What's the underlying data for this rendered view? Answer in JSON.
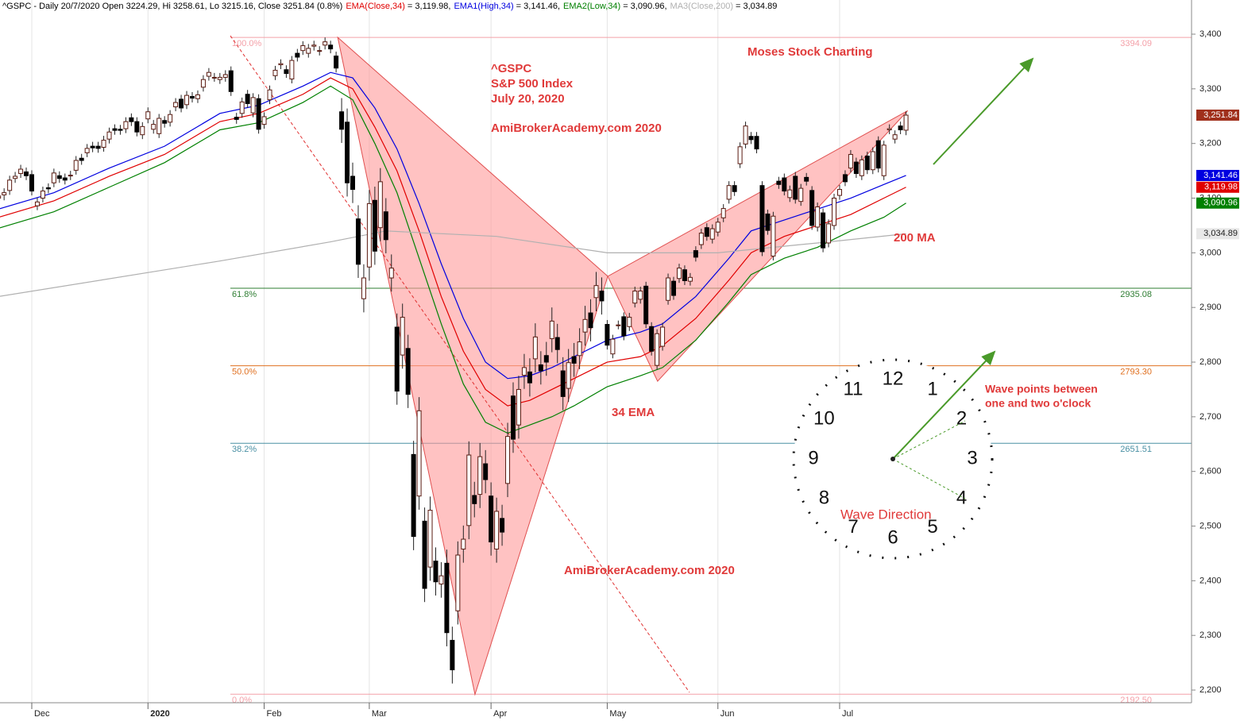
{
  "chart_data": {
    "type": "candlestick",
    "title": "^GSPC - Daily 20/7/2020 Open 3224.29, Hi 3258.61, Lo 3215.16, Close 3251.84 (0.8%)",
    "ohlc": {
      "open": [
        3100,
        3106,
        3114,
        3136,
        3145,
        3148,
        3143,
        3086,
        3100,
        3119,
        3128,
        3141,
        3137,
        3141,
        3151,
        3173,
        3183,
        3195,
        3195,
        3193,
        3208,
        3227,
        3226,
        3227,
        3247,
        3240,
        3216,
        3245,
        3226,
        3218,
        3242,
        3239,
        3267,
        3281,
        3271,
        3286,
        3282,
        3303,
        3323,
        3321,
        3317,
        3321,
        3333,
        3248,
        3255,
        3290,
        3256,
        3282,
        3235,
        3280,
        3324,
        3344,
        3335,
        3318,
        3365,
        3370,
        3365,
        3378,
        3369,
        3380,
        3380,
        3360,
        3258,
        3239,
        3140,
        3062,
        2916,
        2974,
        3096,
        3046,
        3075,
        2954,
        2864,
        2813,
        2825,
        2631,
        2555,
        2509,
        2425,
        2436,
        2394,
        2432,
        2291,
        2345,
        2458,
        2501,
        2556,
        2558,
        2614,
        2555,
        2458,
        2514,
        2578,
        2738,
        2685,
        2776,
        2782,
        2806,
        2795,
        2812,
        2843,
        2845,
        2784,
        2752,
        2810,
        2812,
        2855,
        2890,
        2918,
        2930,
        2869,
        2815,
        2868,
        2883,
        2865,
        2908,
        2915,
        2939,
        2865,
        2794,
        2829,
        2913,
        2948,
        2953,
        2969,
        2948,
        3004,
        3015,
        3046,
        3025,
        3038,
        3064,
        3098,
        3123,
        3163,
        3199,
        3213,
        3213,
        3123,
        3071,
        2994,
        3131,
        3137,
        3101,
        3140,
        3094,
        3138,
        3114,
        3047,
        3073,
        3018,
        3050,
        3105,
        3143,
        3155,
        3166,
        3141,
        3177,
        3152,
        3205,
        3141,
        3225,
        3208,
        3232,
        3224.29
      ],
      "high": [
        3112,
        3118,
        3141,
        3148,
        3161,
        3156,
        3151,
        3101,
        3121,
        3127,
        3154,
        3149,
        3145,
        3150,
        3177,
        3181,
        3199,
        3203,
        3203,
        3214,
        3229,
        3235,
        3234,
        3248,
        3255,
        3248,
        3239,
        3266,
        3243,
        3254,
        3250,
        3261,
        3283,
        3289,
        3296,
        3294,
        3297,
        3325,
        3338,
        3329,
        3329,
        3334,
        3341,
        3256,
        3284,
        3298,
        3292,
        3290,
        3257,
        3306,
        3342,
        3354,
        3343,
        3360,
        3373,
        3387,
        3382,
        3388,
        3378,
        3394,
        3388,
        3368,
        3283,
        3264,
        3165,
        3087,
        2979,
        3115,
        3121,
        3155,
        3100,
        2997,
        2889,
        2907,
        2850,
        2656,
        2736,
        2534,
        2554,
        2461,
        2434,
        2457,
        2316,
        2472,
        2501,
        2655,
        2581,
        2652,
        2639,
        2580,
        2552,
        2539,
        2689,
        2763,
        2775,
        2815,
        2807,
        2871,
        2820,
        2837,
        2900,
        2870,
        2809,
        2824,
        2835,
        2862,
        2903,
        2915,
        2965,
        2955,
        2877,
        2850,
        2876,
        2891,
        2890,
        2938,
        2938,
        2947,
        2873,
        2860,
        2872,
        2962,
        2956,
        2980,
        2977,
        2963,
        3012,
        3044,
        3054,
        3052,
        3064,
        3089,
        3131,
        3131,
        3202,
        3240,
        3221,
        3221,
        3131,
        3079,
        3075,
        3139,
        3145,
        3123,
        3148,
        3126,
        3146,
        3122,
        3092,
        3081,
        3061,
        3108,
        3124,
        3151,
        3188,
        3174,
        3178,
        3185,
        3193,
        3213,
        3205,
        3235,
        3224,
        3240,
        3258.61
      ],
      "low": [
        3092,
        3096,
        3106,
        3128,
        3137,
        3133,
        3105,
        3078,
        3092,
        3109,
        3120,
        3128,
        3125,
        3133,
        3143,
        3161,
        3175,
        3184,
        3183,
        3185,
        3200,
        3216,
        3216,
        3219,
        3232,
        3213,
        3208,
        3237,
        3218,
        3210,
        3229,
        3231,
        3259,
        3257,
        3263,
        3275,
        3274,
        3295,
        3315,
        3313,
        3309,
        3313,
        3287,
        3236,
        3247,
        3265,
        3248,
        3218,
        3227,
        3272,
        3316,
        3336,
        3320,
        3310,
        3350,
        3362,
        3357,
        3370,
        3361,
        3372,
        3365,
        3330,
        3201,
        3103,
        3091,
        2954,
        2891,
        2949,
        2978,
        3021,
        2999,
        2929,
        2722,
        2788,
        2716,
        2456,
        2530,
        2361,
        2400,
        2373,
        2369,
        2280,
        2212,
        2320,
        2433,
        2476,
        2516,
        2533,
        2560,
        2446,
        2433,
        2464,
        2553,
        2634,
        2660,
        2751,
        2737,
        2781,
        2759,
        2775,
        2818,
        2798,
        2712,
        2727,
        2773,
        2787,
        2830,
        2838,
        2893,
        2887,
        2823,
        2807,
        2860,
        2840,
        2857,
        2900,
        2907,
        2862,
        2812,
        2786,
        2821,
        2905,
        2914,
        2945,
        2941,
        2940,
        2984,
        3007,
        3022,
        3017,
        3030,
        3056,
        3090,
        3104,
        3155,
        3191,
        3199,
        3182,
        2994,
        3033,
        2986,
        3117,
        3105,
        3093,
        3090,
        3086,
        3123,
        3042,
        3039,
        3001,
        3010,
        3042,
        3097,
        3122,
        3147,
        3137,
        3133,
        3144,
        3144,
        3147,
        3133,
        3217,
        3200,
        3217,
        3215.16
      ],
      "close": [
        3104,
        3110,
        3133,
        3140,
        3153,
        3141,
        3113,
        3093,
        3113,
        3117,
        3146,
        3136,
        3133,
        3142,
        3169,
        3169,
        3191,
        3192,
        3191,
        3206,
        3221,
        3224,
        3224,
        3240,
        3240,
        3221,
        3231,
        3258,
        3235,
        3246,
        3237,
        3253,
        3275,
        3265,
        3288,
        3283,
        3289,
        3317,
        3330,
        3321,
        3321,
        3326,
        3295,
        3244,
        3276,
        3273,
        3284,
        3226,
        3249,
        3298,
        3334,
        3346,
        3328,
        3352,
        3358,
        3379,
        3374,
        3380,
        3370,
        3386,
        3373,
        3338,
        3226,
        3128,
        3116,
        2979,
        2954,
        3090,
        3003,
        3130,
        3024,
        2972,
        2747,
        2882,
        2741,
        2481,
        2711,
        2386,
        2529,
        2398,
        2409,
        2305,
        2237,
        2447,
        2476,
        2630,
        2541,
        2627,
        2585,
        2471,
        2527,
        2489,
        2664,
        2659,
        2750,
        2790,
        2762,
        2846,
        2784,
        2800,
        2875,
        2823,
        2737,
        2799,
        2798,
        2837,
        2878,
        2863,
        2940,
        2912,
        2831,
        2842,
        2868,
        2848,
        2882,
        2930,
        2930,
        2870,
        2820,
        2852,
        2864,
        2954,
        2922,
        2972,
        2949,
        2955,
        2992,
        3036,
        3030,
        3044,
        3056,
        3081,
        3123,
        3112,
        3194,
        3232,
        3207,
        3190,
        3002,
        3041,
        3067,
        3125,
        3113,
        3115,
        3098,
        3118,
        3131,
        3050,
        3084,
        3009,
        3053,
        3100,
        3116,
        3130,
        3180,
        3145,
        3170,
        3152,
        3185,
        3155,
        3197,
        3227,
        3216,
        3225,
        3251.84
      ],
      "last_label": "3,251.84",
      "tag_color": "#a0301c"
    },
    "series": [
      {
        "name": "EMA(Close,34)",
        "header_value": "= 3,119.98,",
        "last_label": "3,119.98",
        "color": "#e00000",
        "x": [
          0,
          10,
          20,
          30,
          40,
          47,
          55,
          60,
          64,
          68,
          72,
          76,
          80,
          84,
          88,
          92,
          96,
          100,
          104,
          110,
          116,
          120,
          126,
          132,
          136,
          142,
          148,
          154,
          160,
          164
        ],
        "values": [
          3065,
          3095,
          3140,
          3180,
          3240,
          3255,
          3290,
          3320,
          3300,
          3230,
          3150,
          3040,
          2920,
          2820,
          2750,
          2720,
          2730,
          2750,
          2770,
          2800,
          2810,
          2830,
          2880,
          2950,
          3000,
          3030,
          3050,
          3070,
          3100,
          3119.98
        ]
      },
      {
        "name": "EMA1(High,34)",
        "header_value": "= 3,141.46,",
        "last_label": "3,141.46",
        "color": "#0000e0",
        "x": [
          0,
          10,
          20,
          30,
          40,
          47,
          55,
          60,
          64,
          68,
          72,
          76,
          80,
          84,
          88,
          92,
          96,
          100,
          104,
          110,
          116,
          120,
          126,
          132,
          136,
          142,
          148,
          154,
          160,
          164
        ],
        "values": [
          3080,
          3110,
          3155,
          3195,
          3255,
          3270,
          3305,
          3330,
          3320,
          3265,
          3190,
          3090,
          2980,
          2880,
          2800,
          2770,
          2775,
          2790,
          2810,
          2840,
          2855,
          2870,
          2920,
          2990,
          3040,
          3060,
          3080,
          3100,
          3125,
          3141.46
        ]
      },
      {
        "name": "EMA2(Low,34)",
        "header_value": "= 3,090.96,",
        "last_label": "3,090.96",
        "color": "#008000",
        "x": [
          0,
          10,
          20,
          30,
          40,
          47,
          55,
          60,
          64,
          68,
          72,
          76,
          80,
          84,
          88,
          92,
          96,
          100,
          104,
          110,
          116,
          120,
          126,
          132,
          136,
          142,
          148,
          154,
          160,
          164
        ],
        "values": [
          3045,
          3075,
          3120,
          3165,
          3225,
          3238,
          3275,
          3305,
          3280,
          3200,
          3110,
          2990,
          2870,
          2760,
          2690,
          2670,
          2685,
          2700,
          2720,
          2755,
          2775,
          2790,
          2840,
          2910,
          2960,
          2990,
          3010,
          3040,
          3065,
          3090.96
        ]
      },
      {
        "name": "MA3(Close,200)",
        "header_value": "= 3,034.89",
        "last_label": "3,034.89",
        "color": "#b0b0b0",
        "x": [
          0,
          40,
          60,
          70,
          90,
          110,
          130,
          150,
          164
        ],
        "values": [
          2920,
          2985,
          3020,
          3040,
          3030,
          3000,
          3000,
          3020,
          3034.89
        ]
      }
    ],
    "fib_levels": [
      {
        "label": "100.0%",
        "value": 3394.09,
        "value_label": "3394.09",
        "color": "#f4a0a8"
      },
      {
        "label": "61.8%",
        "value": 2935.08,
        "value_label": "2935.08",
        "color": "#2e7d32"
      },
      {
        "label": "50.0%",
        "value": 2793.3,
        "value_label": "2793.30",
        "color": "#e07020"
      },
      {
        "label": "38.2%",
        "value": 2651.51,
        "value_label": "2651.51",
        "color": "#4a90a4"
      },
      {
        "label": "0.0%",
        "value": 2192.5,
        "value_label": "2192.50",
        "color": "#f4a0a8"
      }
    ],
    "pattern": {
      "x": [
        61.3,
        86.1,
        110.1,
        119.1,
        164.3
      ],
      "values": [
        3394,
        2192,
        2957,
        2765,
        3260
      ],
      "color": "#ff9a9a"
    },
    "xlim": [
      0.258,
      215.6
    ],
    "ylim": [
      2176.8,
      3462.5
    ],
    "xticks": [
      {
        "value": 6,
        "label": "Dec"
      },
      {
        "value": 27,
        "label": "2020"
      },
      {
        "value": 48,
        "label": "Feb"
      },
      {
        "value": 67,
        "label": "Mar"
      },
      {
        "value": 89,
        "label": "Apr"
      },
      {
        "value": 110,
        "label": "May"
      },
      {
        "value": 130,
        "label": "Jun"
      },
      {
        "value": 152,
        "label": "Jul"
      }
    ],
    "yticks": [
      {
        "value": 2200,
        "label": "2,200"
      },
      {
        "value": 2300,
        "label": "2,300"
      },
      {
        "value": 2400,
        "label": "2,400"
      },
      {
        "value": 2500,
        "label": "2,500"
      },
      {
        "value": 2600,
        "label": "2,600"
      },
      {
        "value": 2700,
        "label": "2,700"
      },
      {
        "value": 2800,
        "label": "2,800"
      },
      {
        "value": 2900,
        "label": "2,900"
      },
      {
        "value": 3000,
        "label": "3,000"
      },
      {
        "value": 3100,
        "label": "3,100"
      },
      {
        "value": 3200,
        "label": "3,200"
      },
      {
        "value": 3300,
        "label": "3,300"
      },
      {
        "value": 3400,
        "label": "3,400"
      }
    ],
    "grid": true,
    "annotations": [
      "^GSPC",
      "S&P 500 Index",
      "July 20, 2020",
      "AmiBrokerAcademy.com  2020",
      "Moses Stock Charting",
      "200 MA",
      "34 EMA",
      "AmiBrokerAcademy.com 2020",
      "Wave points between",
      "one and two o'clock",
      "Wave Direction"
    ],
    "clock": [
      12,
      1,
      2,
      3,
      4,
      5,
      6,
      7,
      8,
      9,
      10,
      11
    ]
  }
}
